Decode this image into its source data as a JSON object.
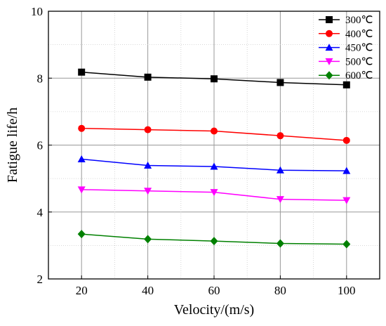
{
  "chart_data": {
    "type": "line",
    "title": "",
    "xlabel": "Velocity/(m/s)",
    "ylabel": "Fatigue life/h",
    "x": [
      20,
      40,
      60,
      80,
      100
    ],
    "xlim": [
      10,
      110
    ],
    "ylim": [
      2,
      10
    ],
    "xticks": [
      20,
      40,
      60,
      80,
      100
    ],
    "yticks": [
      2,
      4,
      6,
      8,
      10
    ],
    "grid": true,
    "legend_position": "top-right",
    "series": [
      {
        "name": "300℃",
        "color": "#000000",
        "marker": "square",
        "values": [
          8.18,
          8.03,
          7.98,
          7.87,
          7.8
        ]
      },
      {
        "name": "400℃",
        "color": "#ff0000",
        "marker": "circle",
        "values": [
          6.5,
          6.46,
          6.42,
          6.28,
          6.14
        ]
      },
      {
        "name": "450℃",
        "color": "#0000ff",
        "marker": "triangle-up",
        "values": [
          5.58,
          5.39,
          5.36,
          5.25,
          5.23
        ]
      },
      {
        "name": "500℃",
        "color": "#ff00ff",
        "marker": "triangle-down",
        "values": [
          4.67,
          4.63,
          4.59,
          4.38,
          4.35
        ]
      },
      {
        "name": "600℃",
        "color": "#008000",
        "marker": "diamond",
        "values": [
          3.34,
          3.19,
          3.13,
          3.06,
          3.04
        ]
      }
    ]
  }
}
